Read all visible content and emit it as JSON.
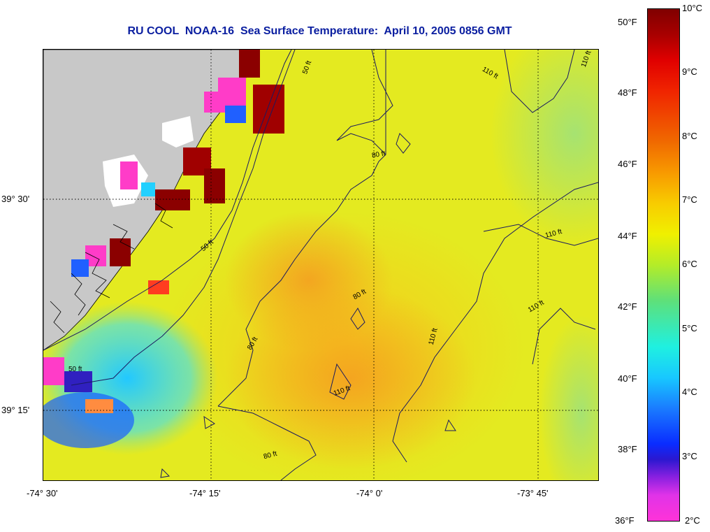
{
  "title": "RU COOL  NOAA-16  Sea Surface Temperature:  April 10, 2005 0856 GMT",
  "map": {
    "lat_labels": [
      "39° 30'",
      "39° 15'"
    ],
    "lon_labels": [
      "-74° 30'",
      "-74° 15'",
      "-74° 0'",
      "-73° 45'"
    ],
    "contour_labels": [
      "50 ft",
      "50 ft",
      "50 ft",
      "80 ft",
      "80 ft",
      "80 ft",
      "80 ft",
      "110 ft",
      "110 ft",
      "110 ft",
      "110 ft",
      "110 ft",
      "110 ft"
    ],
    "colors": {
      "land": "#c8c8c8",
      "cloud": "#ffffff",
      "grid": "#000000",
      "title": "#0a1ea0"
    }
  },
  "colorbar": {
    "fahrenheit": [
      "50°F",
      "48°F",
      "46°F",
      "44°F",
      "42°F",
      "40°F",
      "38°F",
      "36°F"
    ],
    "celsius": [
      "10°C",
      "9°C",
      "8°C",
      "7°C",
      "6°C",
      "5°C",
      "4°C",
      "3°C",
      "2°C"
    ],
    "range_c": [
      2,
      10
    ]
  }
}
